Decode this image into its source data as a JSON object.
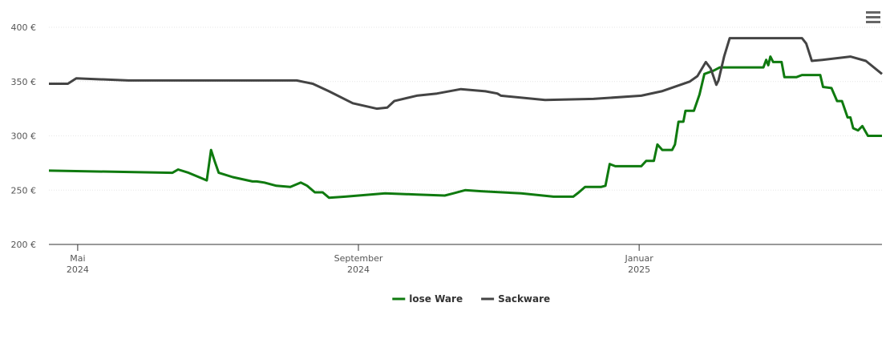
{
  "chart_data": {
    "type": "line",
    "xlim": [
      4.59,
      16.46
    ],
    "xticks": [
      {
        "value": 5,
        "label": [
          "Mai",
          "2024"
        ]
      },
      {
        "value": 9,
        "label": [
          "September",
          "2024"
        ]
      },
      {
        "value": 13,
        "label": [
          "Januar",
          "2025"
        ]
      }
    ],
    "ylim": [
      200,
      400
    ],
    "yticks": [
      {
        "value": 200,
        "label": "200 €"
      },
      {
        "value": 250,
        "label": "250 €"
      },
      {
        "value": 300,
        "label": "300 €"
      },
      {
        "value": 350,
        "label": "350 €"
      },
      {
        "value": 400,
        "label": "400 €"
      }
    ],
    "grid": true,
    "legend": "bottom",
    "series": [
      {
        "name": "lose Ware",
        "color": "#0f7a0f",
        "x": [
          4.59,
          6.35,
          6.43,
          6.58,
          6.84,
          6.9,
          6.95,
          7.01,
          7.21,
          7.49,
          7.55,
          7.66,
          7.83,
          8.03,
          8.18,
          8.27,
          8.38,
          8.49,
          8.58,
          8.81,
          9.38,
          9.83,
          10.23,
          10.35,
          10.52,
          10.75,
          11.32,
          11.78,
          12.06,
          12.14,
          12.23,
          12.46,
          12.52,
          12.58,
          12.66,
          13.03,
          13.1,
          13.21,
          13.26,
          13.33,
          13.47,
          13.51,
          13.56,
          13.63,
          13.66,
          13.78,
          13.86,
          13.93,
          14.06,
          14.15,
          14.77,
          14.81,
          14.84,
          14.87,
          14.91,
          15.03,
          15.07,
          15.24,
          15.32,
          15.58,
          15.62,
          15.74,
          15.82,
          15.89,
          15.97,
          16.01,
          16.05,
          16.12,
          16.18,
          16.26,
          16.46
        ],
        "values": [
          268,
          266,
          269,
          266,
          259,
          287,
          277,
          266,
          262,
          258,
          258,
          257,
          254,
          253,
          257,
          254,
          248,
          248,
          243,
          244,
          247,
          246,
          245,
          247,
          250,
          249,
          247,
          244,
          244,
          248,
          253,
          253,
          254,
          274,
          272,
          272,
          277,
          277,
          292,
          287,
          287,
          292,
          313,
          313,
          323,
          323,
          338,
          357,
          360,
          363,
          363,
          370,
          365,
          373,
          368,
          368,
          354,
          354,
          356,
          356,
          345,
          344,
          332,
          332,
          317,
          317,
          307,
          305,
          309,
          300,
          300
        ]
      },
      {
        "name": "Sackware",
        "color": "#444444",
        "x": [
          4.59,
          4.86,
          4.98,
          5.72,
          8.12,
          8.35,
          8.58,
          8.92,
          9.26,
          9.41,
          9.51,
          9.83,
          10.12,
          10.46,
          10.81,
          10.98,
          11.03,
          11.66,
          12.35,
          13.03,
          13.32,
          13.72,
          13.83,
          13.95,
          14.02,
          14.1,
          14.13,
          14.21,
          14.29,
          15.32,
          15.38,
          15.46,
          15.61,
          16.01,
          16.23,
          16.46
        ],
        "values": [
          348,
          348,
          353,
          351,
          351,
          348,
          341,
          330,
          325,
          326,
          332,
          337,
          339,
          343,
          341,
          339,
          337,
          333,
          334,
          337,
          341,
          350,
          355,
          368,
          362,
          347,
          351,
          373,
          390,
          390,
          385,
          369,
          370,
          373,
          369,
          357
        ]
      }
    ]
  }
}
